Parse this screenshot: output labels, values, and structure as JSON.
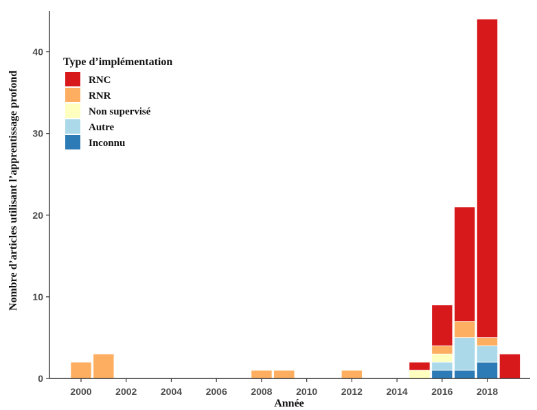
{
  "chart_data": {
    "type": "bar",
    "stacked": true,
    "xlabel": "Année",
    "ylabel": "Nombre d’articles utilisant l’apprentissage profond",
    "x": [
      2000,
      2001,
      2008,
      2009,
      2012,
      2015,
      2016,
      2017,
      2018,
      2019
    ],
    "xlim": [
      1998.6,
      2019.9
    ],
    "ylim": [
      0,
      45
    ],
    "x_ticks": [
      2000,
      2002,
      2004,
      2006,
      2008,
      2010,
      2012,
      2014,
      2016,
      2018
    ],
    "y_ticks": [
      0,
      10,
      20,
      30,
      40
    ],
    "x_tick_labels": [
      "2000",
      "2002",
      "2004",
      "2006",
      "2008",
      "2010",
      "2012",
      "2014",
      "2016",
      "2018"
    ],
    "y_tick_labels": [
      "0",
      "10",
      "20",
      "30",
      "40"
    ],
    "grid": false,
    "legend_position": "top-left",
    "legend_title": "Type d’implémentation",
    "series": [
      {
        "name": "Inconnu",
        "color": "#2c7bb6",
        "values": [
          0,
          0,
          0,
          0,
          0,
          0,
          1,
          1,
          2,
          0
        ]
      },
      {
        "name": "Autre",
        "color": "#abd9e9",
        "values": [
          0,
          0,
          0,
          0,
          0,
          0,
          1,
          4,
          2,
          0
        ]
      },
      {
        "name": "Non supervisé",
        "color": "#ffffbf",
        "values": [
          0,
          0,
          0,
          0,
          0,
          1,
          1,
          0,
          0,
          0
        ]
      },
      {
        "name": "RNR",
        "color": "#fdae61",
        "values": [
          2,
          3,
          1,
          1,
          1,
          0,
          1,
          2,
          1,
          0
        ]
      },
      {
        "name": "RNC",
        "color": "#d7191c",
        "values": [
          0,
          0,
          0,
          0,
          0,
          1,
          5,
          14,
          39,
          3
        ]
      }
    ],
    "legend_order": [
      "RNC",
      "RNR",
      "Non supervisé",
      "Autre",
      "Inconnu"
    ]
  }
}
